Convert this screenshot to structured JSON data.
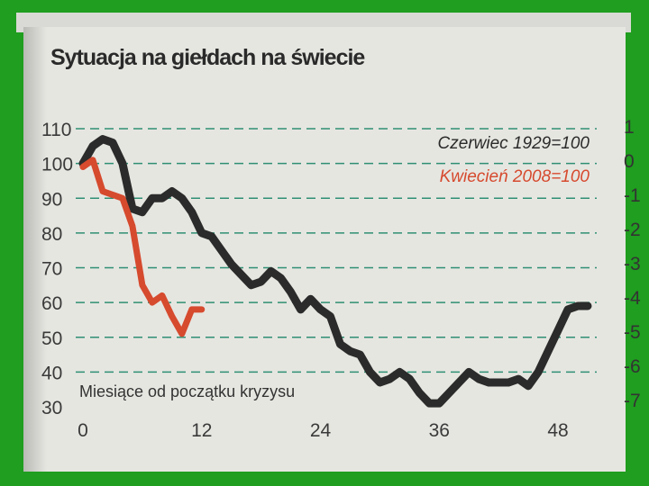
{
  "chart_data": {
    "type": "line",
    "title": "Sytuacja na giełdach na świecie",
    "xlabel": "Miesiące od początku kryzysu",
    "ylabel": "",
    "xlim": [
      0,
      51
    ],
    "ylim": [
      30,
      110
    ],
    "x_ticks": [
      "0",
      "12",
      "24",
      "36",
      "48"
    ],
    "y_ticks": [
      "30",
      "40",
      "50",
      "60",
      "70",
      "80",
      "90",
      "100",
      "110"
    ],
    "grid": "horizontal dashed",
    "legend": "top-right",
    "series": [
      {
        "name": "Czerwiec 1929=100",
        "color": "#2b2b2b",
        "x": [
          0,
          1,
          2,
          3,
          4,
          5,
          6,
          7,
          8,
          9,
          10,
          11,
          12,
          13,
          14,
          15,
          16,
          17,
          18,
          19,
          20,
          21,
          22,
          23,
          24,
          25,
          26,
          27,
          28,
          29,
          30,
          31,
          32,
          33,
          34,
          35,
          36,
          37,
          38,
          39,
          40,
          41,
          42,
          43,
          44,
          45,
          46,
          47,
          48,
          49,
          50,
          51
        ],
        "values": [
          100,
          105,
          107,
          106,
          100,
          87,
          86,
          90,
          90,
          92,
          90,
          86,
          80,
          79,
          75,
          71,
          68,
          65,
          66,
          69,
          67,
          63,
          58,
          61,
          58,
          56,
          48,
          46,
          45,
          40,
          37,
          38,
          40,
          38,
          34,
          31,
          31,
          34,
          37,
          40,
          38,
          37,
          37,
          37,
          38,
          36,
          40,
          46,
          52,
          58,
          59,
          59
        ]
      },
      {
        "name": "Kwiecień 2008=100",
        "color": "#d64a2e",
        "x": [
          0,
          1,
          2,
          3,
          4,
          5,
          6,
          7,
          8,
          9,
          10,
          11,
          12
        ],
        "values": [
          99,
          101,
          92,
          91,
          90,
          82,
          65,
          60,
          62,
          56,
          51,
          58,
          58
        ]
      }
    ]
  },
  "right_fragments": [
    "1",
    "0",
    "-1",
    "-2",
    "-3",
    "-4",
    "-5",
    "-6",
    "-7"
  ]
}
